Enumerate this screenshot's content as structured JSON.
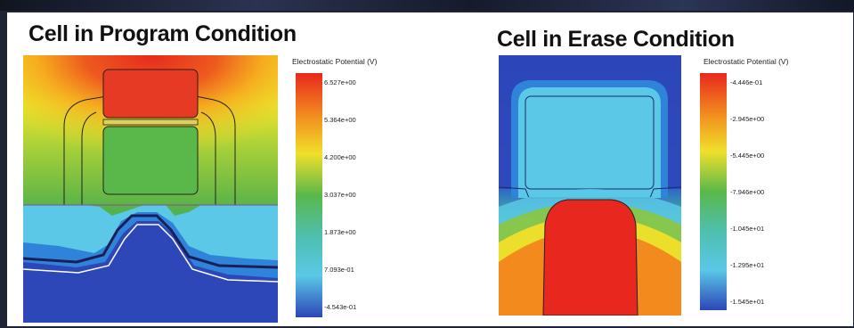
{
  "left": {
    "title": "Cell in Program Condition",
    "colorbar": {
      "title": "Electrostatic Potential (V)",
      "ticks": [
        "6.527e+00",
        "5.364e+00",
        "4.200e+00",
        "3.037e+00",
        "1.873e+00",
        "7.093e-01",
        "-4.543e-01"
      ]
    }
  },
  "right": {
    "title": "Cell in Erase Condition",
    "colorbar": {
      "title": "Electrostatic Potential (V)",
      "ticks": [
        "-4.446e-01",
        "-2.945e+00",
        "-5.445e+00",
        "-7.946e+00",
        "-1.045e+01",
        "-1.295e+01",
        "-1.545e+01"
      ]
    }
  },
  "colors": {
    "red": "#e8281e",
    "orange": "#f28a1e",
    "yellow": "#f0e02a",
    "green": "#5ab84a",
    "light_blue": "#5ac8e6",
    "mid_blue": "#2f83d8",
    "dark_blue": "#2d46b8"
  }
}
